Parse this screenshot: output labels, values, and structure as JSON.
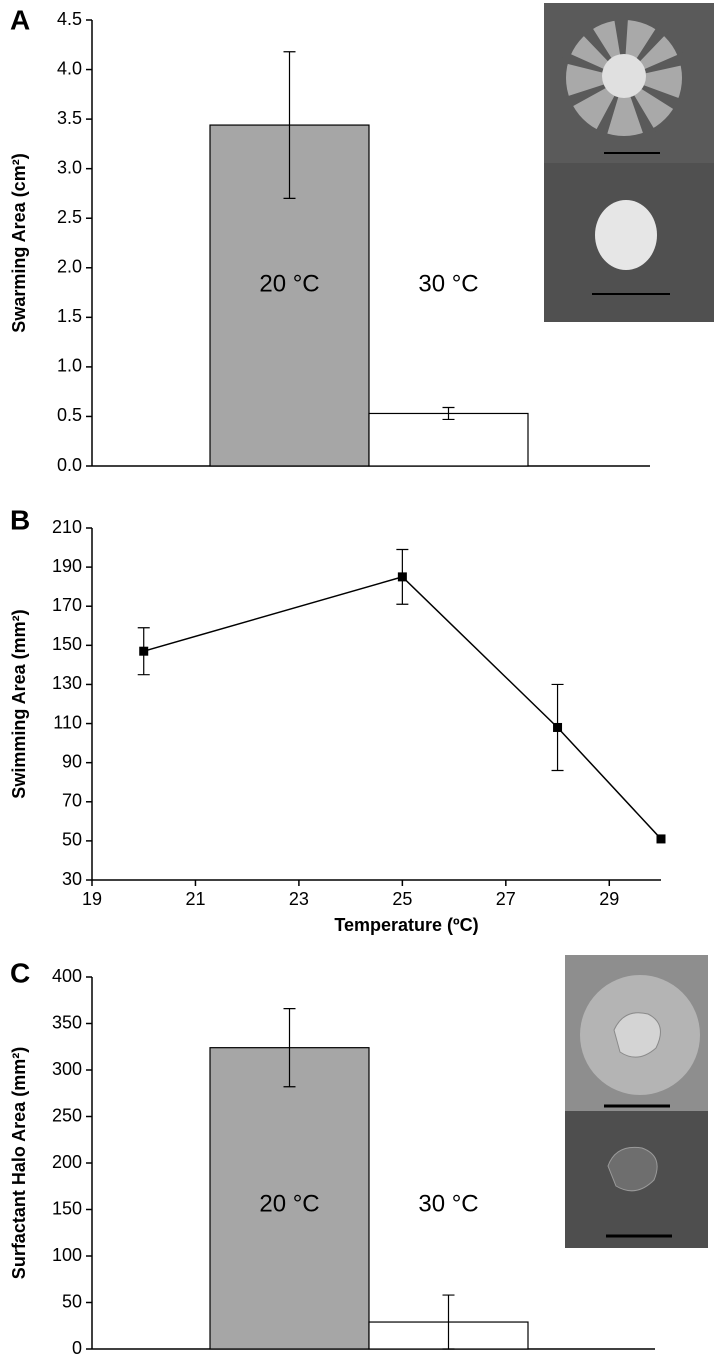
{
  "chart_data": [
    {
      "type": "bar",
      "panel_label": "A",
      "y_label": "Swarming Area (cm²)",
      "categories": [
        "20 °C",
        "30 °C"
      ],
      "values": [
        3.44,
        0.53
      ],
      "errors": [
        0.74,
        0.06
      ],
      "colors": [
        "#a6a6a6",
        "#ffffff"
      ],
      "ylim": [
        0,
        4.5
      ],
      "yticks": [
        {
          "value": 0,
          "label": "0.0"
        },
        {
          "value": 0.5,
          "label": "0.5"
        },
        {
          "value": 1,
          "label": "1.0"
        },
        {
          "value": 1.5,
          "label": "1.5"
        },
        {
          "value": 2,
          "label": "2.0"
        },
        {
          "value": 2.5,
          "label": "2.5"
        },
        {
          "value": 3,
          "label": "3.0"
        },
        {
          "value": 3.5,
          "label": "3.5"
        },
        {
          "value": 4,
          "label": "4.0"
        },
        {
          "value": 4.5,
          "label": "4.5"
        }
      ]
    },
    {
      "type": "line",
      "panel_label": "B",
      "y_label": "Swimming Area (mm²)",
      "x_label": "Temperature (ºC)",
      "x": [
        20,
        25,
        28,
        30
      ],
      "values": [
        147,
        185,
        108,
        51
      ],
      "errors": [
        12,
        14,
        22,
        0
      ],
      "color": "#000000",
      "xlim": [
        19,
        30
      ],
      "xticks": [
        19,
        21,
        23,
        25,
        27,
        29
      ],
      "ylim": [
        30,
        210
      ],
      "yticks": [
        30,
        50,
        70,
        90,
        110,
        130,
        150,
        170,
        190,
        210
      ]
    },
    {
      "type": "bar",
      "panel_label": "C",
      "y_label": "Surfactant Halo Area (mm²)",
      "categories": [
        "20 °C",
        "30 °C"
      ],
      "values": [
        324,
        29
      ],
      "errors": [
        42,
        29
      ],
      "colors": [
        "#a6a6a6",
        "#ffffff"
      ],
      "ylim": [
        0,
        400
      ],
      "yticks": [
        0,
        50,
        100,
        150,
        200,
        250,
        300,
        350,
        400
      ]
    }
  ]
}
